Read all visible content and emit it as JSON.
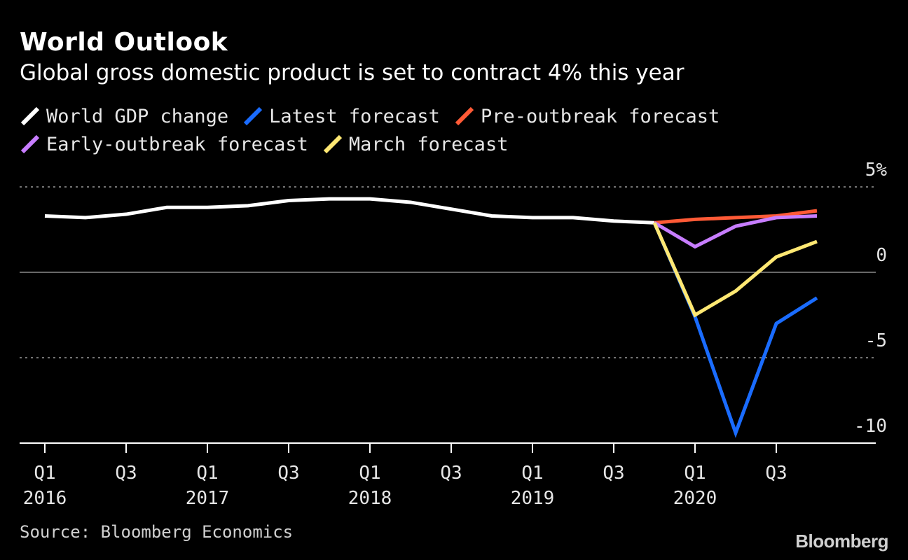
{
  "title": "World Outlook",
  "subtitle": "Global gross domestic product is set to contract 4% this year",
  "source": "Source: Bloomberg Economics",
  "logo": "Bloomberg",
  "legend": [
    {
      "label": "World GDP change",
      "color": "#ffffff"
    },
    {
      "label": "Latest forecast",
      "color": "#1a6cff"
    },
    {
      "label": "Pre-outbreak forecast",
      "color": "#ff5a36"
    },
    {
      "label": "Early-outbreak forecast",
      "color": "#c77dff"
    },
    {
      "label": "March forecast",
      "color": "#ffe873"
    }
  ],
  "chart_data": {
    "type": "line",
    "title": "World Outlook",
    "subtitle": "Global gross domestic product is set to contract 4% this year",
    "ylabel": "",
    "xlabel": "",
    "ylim": [
      -10,
      5
    ],
    "yticks": [
      {
        "value": 5,
        "label": "5%"
      },
      {
        "value": 0,
        "label": "0"
      },
      {
        "value": -5,
        "label": "-5"
      },
      {
        "value": -10,
        "label": "-10"
      }
    ],
    "x": [
      "Q1 2016",
      "Q2 2016",
      "Q3 2016",
      "Q4 2016",
      "Q1 2017",
      "Q2 2017",
      "Q3 2017",
      "Q4 2017",
      "Q1 2018",
      "Q2 2018",
      "Q3 2018",
      "Q4 2018",
      "Q1 2019",
      "Q2 2019",
      "Q3 2019",
      "Q4 2019",
      "Q1 2020",
      "Q2 2020",
      "Q3 2020",
      "Q4 2020"
    ],
    "xtick_labels": [
      {
        "index": 0,
        "line1": "Q1",
        "line2": "2016"
      },
      {
        "index": 2,
        "line1": "Q3",
        "line2": ""
      },
      {
        "index": 4,
        "line1": "Q1",
        "line2": "2017"
      },
      {
        "index": 6,
        "line1": "Q3",
        "line2": ""
      },
      {
        "index": 8,
        "line1": "Q1",
        "line2": "2018"
      },
      {
        "index": 10,
        "line1": "Q3",
        "line2": ""
      },
      {
        "index": 12,
        "line1": "Q1",
        "line2": "2019"
      },
      {
        "index": 14,
        "line1": "Q3",
        "line2": ""
      },
      {
        "index": 16,
        "line1": "Q1",
        "line2": "2020"
      },
      {
        "index": 18,
        "line1": "Q3",
        "line2": ""
      }
    ],
    "series": [
      {
        "name": "World GDP change",
        "color": "#ffffff",
        "values": [
          3.3,
          3.2,
          3.4,
          3.8,
          3.8,
          3.9,
          4.2,
          4.3,
          4.3,
          4.1,
          3.7,
          3.3,
          3.2,
          3.2,
          3.0,
          2.9,
          null,
          null,
          null,
          null
        ]
      },
      {
        "name": "Latest forecast",
        "color": "#1a6cff",
        "values": [
          null,
          null,
          null,
          null,
          null,
          null,
          null,
          null,
          null,
          null,
          null,
          null,
          null,
          null,
          null,
          2.9,
          -2.6,
          -9.4,
          -3.0,
          -1.5
        ]
      },
      {
        "name": "Pre-outbreak forecast",
        "color": "#ff5a36",
        "values": [
          null,
          null,
          null,
          null,
          null,
          null,
          null,
          null,
          null,
          null,
          null,
          null,
          null,
          null,
          null,
          2.9,
          3.1,
          3.2,
          3.3,
          3.6
        ]
      },
      {
        "name": "Early-outbreak forecast",
        "color": "#c77dff",
        "values": [
          null,
          null,
          null,
          null,
          null,
          null,
          null,
          null,
          null,
          null,
          null,
          null,
          null,
          null,
          null,
          2.9,
          1.5,
          2.7,
          3.2,
          3.3
        ]
      },
      {
        "name": "March forecast",
        "color": "#ffe873",
        "values": [
          null,
          null,
          null,
          null,
          null,
          null,
          null,
          null,
          null,
          null,
          null,
          null,
          null,
          null,
          null,
          2.9,
          -2.5,
          -1.1,
          0.9,
          1.8
        ]
      }
    ],
    "grid": true,
    "legend_position": "top-left"
  }
}
